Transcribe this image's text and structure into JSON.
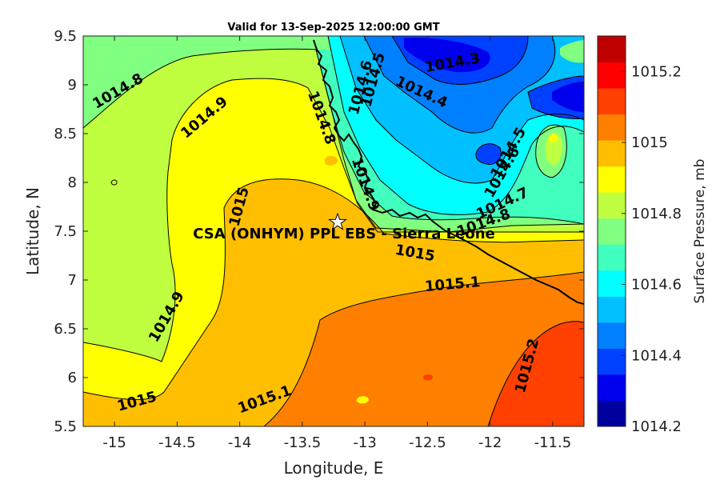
{
  "chart_data": {
    "type": "contour",
    "title": "Valid for 13-Sep-2025 12:00:00 GMT",
    "xlabel": "Longitude, E",
    "ylabel": "Latitude, N",
    "xlim": [
      -15.25,
      -11.25
    ],
    "ylim": [
      5.5,
      9.5
    ],
    "xticks": [
      "-15",
      "-14.5",
      "-14",
      "-13.5",
      "-13",
      "-12.5",
      "-12",
      "-11.5"
    ],
    "xtick_values": [
      -15,
      -14.5,
      -14,
      -13.5,
      -13,
      -12.5,
      -12,
      -11.5
    ],
    "yticks": [
      "5.5",
      "6",
      "6.5",
      "7",
      "7.5",
      "8",
      "8.5",
      "9",
      "9.5"
    ],
    "ytick_values": [
      5.5,
      6,
      6.5,
      7,
      7.5,
      8,
      8.5,
      9,
      9.5
    ],
    "colorbar": {
      "label": "Surface Pressure, mb",
      "range": [
        1014.2,
        1015.3
      ],
      "tick_labels": [
        "1014.2",
        "1014.4",
        "1014.6",
        "1014.8",
        "1015",
        "1015.2"
      ],
      "tick_values": [
        1014.2,
        1014.4,
        1014.6,
        1014.8,
        1015.0,
        1015.2
      ],
      "colors": [
        "#00009e",
        "#0000ee",
        "#0040ff",
        "#0080ff",
        "#00c0ff",
        "#00ffff",
        "#40ffbf",
        "#80ff80",
        "#bfff40",
        "#ffff00",
        "#ffbf00",
        "#ff8000",
        "#ff4000",
        "#ff0000",
        "#bf0000"
      ]
    },
    "contour_labels": [
      {
        "text": "1014.3",
        "lon": -12.3,
        "lat": 9.22
      },
      {
        "text": "1014.4",
        "lon": -12.55,
        "lat": 8.92
      },
      {
        "text": "1014.5",
        "lon": -12.93,
        "lat": 9.05
      },
      {
        "text": "1014.6",
        "lon": -13.03,
        "lat": 8.97
      },
      {
        "text": "1014.5",
        "lon": -11.85,
        "lat": 8.3
      },
      {
        "text": "1014.6",
        "lon": -11.9,
        "lat": 8.1
      },
      {
        "text": "1014.7",
        "lon": -11.9,
        "lat": 7.78
      },
      {
        "text": "1014.8",
        "lon": -12.05,
        "lat": 7.58
      },
      {
        "text": "1014.8",
        "lon": -14.97,
        "lat": 8.93
      },
      {
        "text": "1014.9",
        "lon": -14.28,
        "lat": 8.66
      },
      {
        "text": "1014.8",
        "lon": -13.35,
        "lat": 8.66
      },
      {
        "text": "1014.9",
        "lon": -13.0,
        "lat": 7.98
      },
      {
        "text": "1015",
        "lon": -14.0,
        "lat": 7.75
      },
      {
        "text": "1015",
        "lon": -12.6,
        "lat": 7.27
      },
      {
        "text": "1015.1",
        "lon": -12.3,
        "lat": 6.95
      },
      {
        "text": "1014.9",
        "lon": -14.58,
        "lat": 6.62
      },
      {
        "text": "1015",
        "lon": -14.82,
        "lat": 5.75
      },
      {
        "text": "1015.1",
        "lon": -13.8,
        "lat": 5.77
      },
      {
        "text": "1015.2",
        "lon": -11.7,
        "lat": 6.12
      }
    ],
    "station": {
      "name": "CSA (ONHYM) PPL EBS - Sierra Leone",
      "lon": -13.23,
      "lat": 7.58
    },
    "grid": false,
    "colorbar_position": "right"
  }
}
